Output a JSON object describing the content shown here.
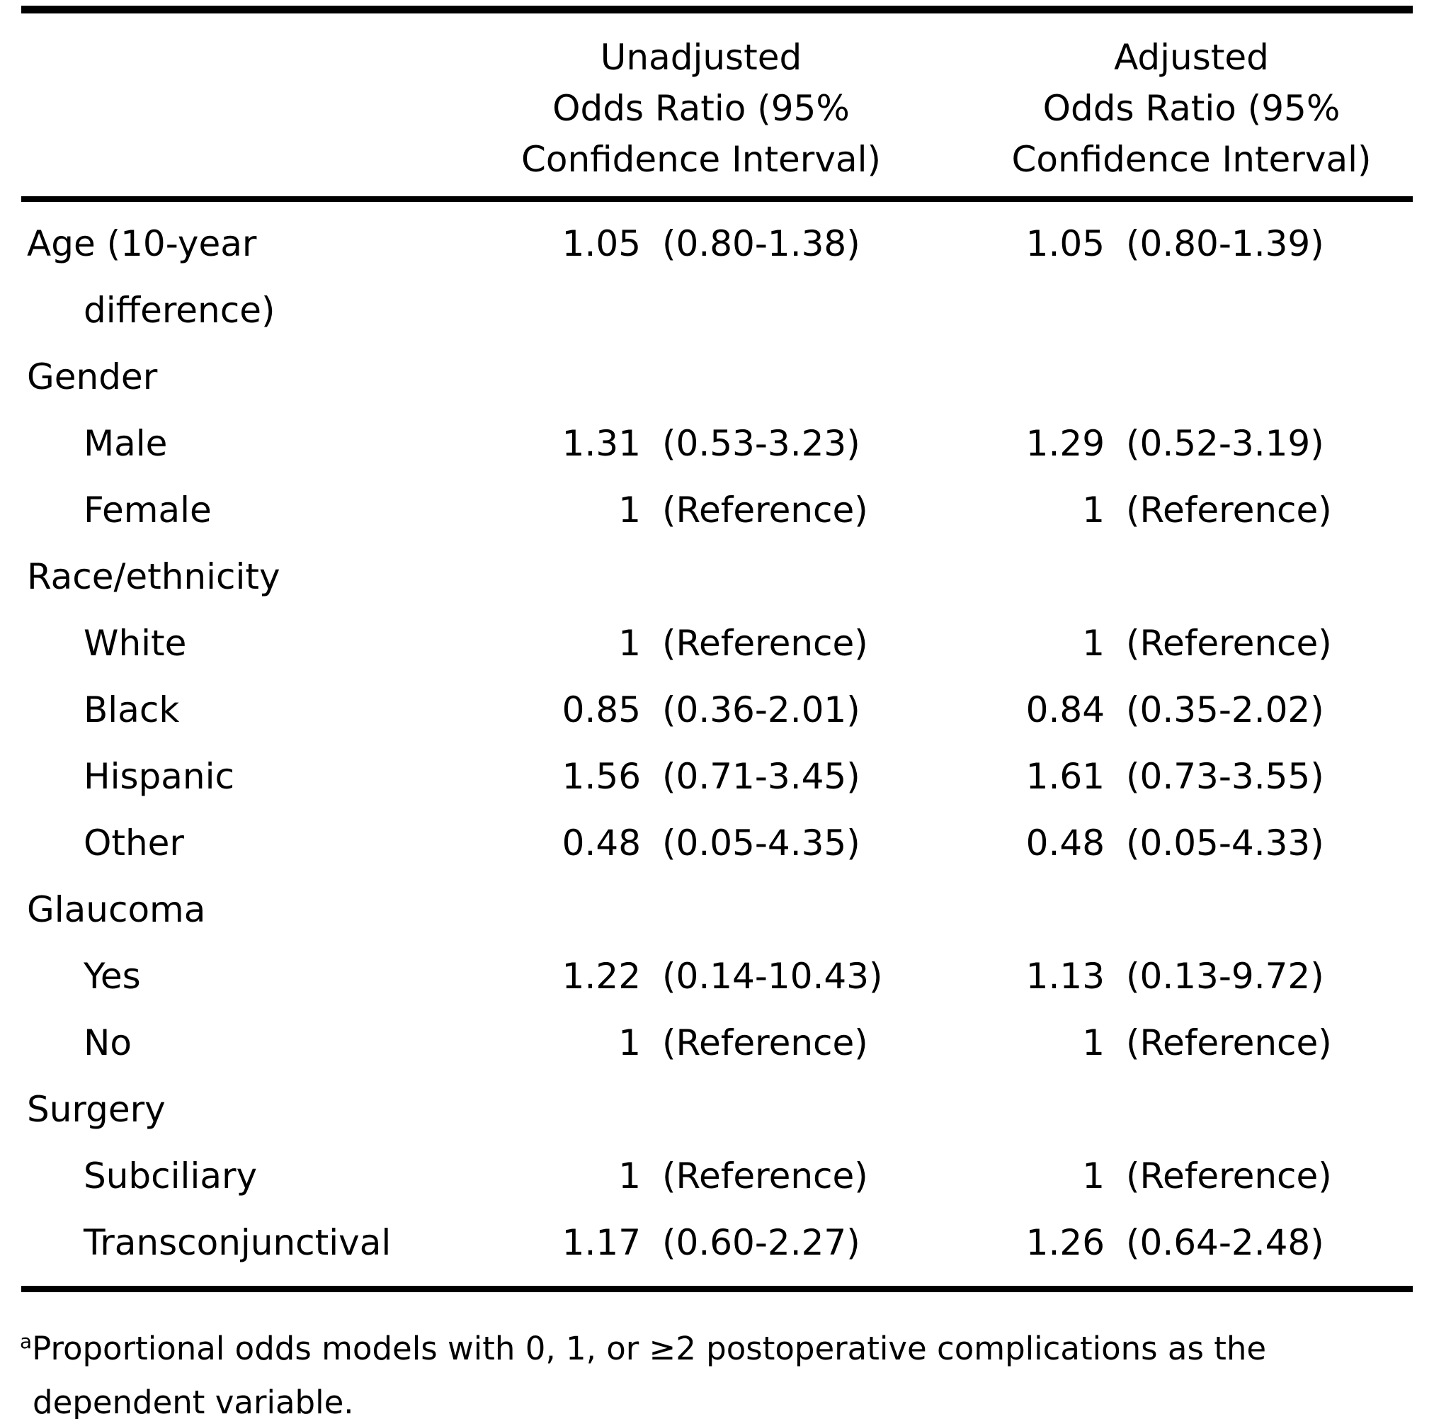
{
  "table": {
    "columns": {
      "unadjusted": {
        "line1": "Unadjusted",
        "line2": "Odds Ratio (95%",
        "line3": "Confidence Interval)"
      },
      "adjusted": {
        "line1": "Adjusted",
        "line2": "Odds Ratio (95%",
        "line3": "Confidence Interval)"
      }
    },
    "rows": [
      {
        "label": "Age (10-year difference)",
        "indent": false,
        "u_or": "1.05",
        "u_ci": "(0.80-1.38)",
        "a_or": "1.05",
        "a_ci": "(0.80-1.39)"
      },
      {
        "label": "Gender",
        "indent": false,
        "u_or": "",
        "u_ci": "",
        "a_or": "",
        "a_ci": ""
      },
      {
        "label": "Male",
        "indent": true,
        "u_or": "1.31",
        "u_ci": "(0.53-3.23)",
        "a_or": "1.29",
        "a_ci": "(0.52-3.19)"
      },
      {
        "label": "Female",
        "indent": true,
        "u_or": "1",
        "u_ci": "(Reference)",
        "a_or": "1",
        "a_ci": "(Reference)"
      },
      {
        "label": "Race/ethnicity",
        "indent": false,
        "u_or": "",
        "u_ci": "",
        "a_or": "",
        "a_ci": ""
      },
      {
        "label": "White",
        "indent": true,
        "u_or": "1",
        "u_ci": "(Reference)",
        "a_or": "1",
        "a_ci": "(Reference)"
      },
      {
        "label": "Black",
        "indent": true,
        "u_or": "0.85",
        "u_ci": "(0.36-2.01)",
        "a_or": "0.84",
        "a_ci": "(0.35-2.02)"
      },
      {
        "label": "Hispanic",
        "indent": true,
        "u_or": "1.56",
        "u_ci": "(0.71-3.45)",
        "a_or": "1.61",
        "a_ci": "(0.73-3.55)"
      },
      {
        "label": "Other",
        "indent": true,
        "u_or": "0.48",
        "u_ci": "(0.05-4.35)",
        "a_or": "0.48",
        "a_ci": "(0.05-4.33)"
      },
      {
        "label": "Glaucoma",
        "indent": false,
        "u_or": "",
        "u_ci": "",
        "a_or": "",
        "a_ci": ""
      },
      {
        "label": "Yes",
        "indent": true,
        "u_or": "1.22",
        "u_ci": "(0.14-10.43)",
        "a_or": "1.13",
        "a_ci": "(0.13-9.72)"
      },
      {
        "label": "No",
        "indent": true,
        "u_or": "1",
        "u_ci": "(Reference)",
        "a_or": "1",
        "a_ci": "(Reference)"
      },
      {
        "label": "Surgery",
        "indent": false,
        "u_or": "",
        "u_ci": "",
        "a_or": "",
        "a_ci": ""
      },
      {
        "label": "Subciliary",
        "indent": true,
        "u_or": "1",
        "u_ci": "(Reference)",
        "a_or": "1",
        "a_ci": "(Reference)"
      },
      {
        "label": "Transconjunctival",
        "indent": true,
        "u_or": "1.17",
        "u_ci": "(0.60-2.27)",
        "a_or": "1.26",
        "a_ci": "(0.64-2.48)"
      }
    ]
  },
  "footnote": {
    "marker": "a",
    "text": "Proportional odds models with 0, 1, or ≥2 postoperative complications as the dependent variable."
  }
}
